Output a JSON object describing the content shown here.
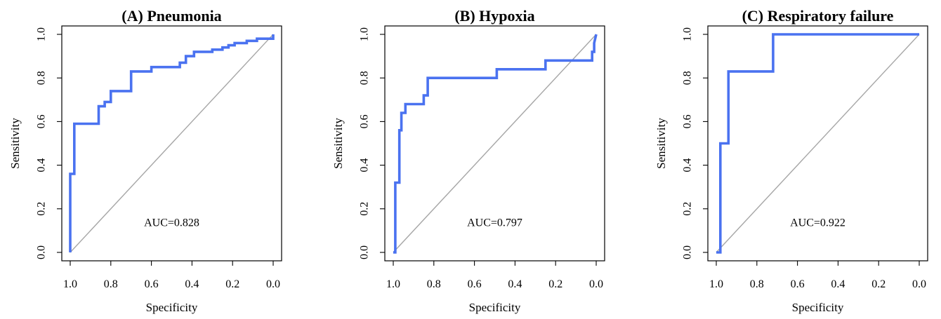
{
  "chart_data": [
    {
      "type": "line",
      "title": "(A) Pneumonia",
      "xlabel": "Specificity",
      "ylabel": "Sensitivity",
      "xlim": [
        1.0,
        0.0
      ],
      "ylim": [
        0.0,
        1.0
      ],
      "x_reversed": true,
      "xticks": [
        "1.0",
        "0.8",
        "0.6",
        "0.4",
        "0.2",
        "0.0"
      ],
      "yticks": [
        "0.0",
        "0.2",
        "0.4",
        "0.6",
        "0.8",
        "1.0"
      ],
      "annotation": "AUC=0.828",
      "diagonal": true,
      "series": [
        {
          "color": "#4a72f0",
          "x": [
            1.0,
            1.0,
            0.98,
            0.98,
            0.86,
            0.86,
            0.83,
            0.83,
            0.8,
            0.8,
            0.7,
            0.7,
            0.6,
            0.6,
            0.46,
            0.46,
            0.43,
            0.43,
            0.39,
            0.39,
            0.3,
            0.3,
            0.25,
            0.25,
            0.22,
            0.22,
            0.19,
            0.19,
            0.13,
            0.13,
            0.08,
            0.08,
            0.0,
            0.0
          ],
          "y": [
            0.0,
            0.36,
            0.36,
            0.59,
            0.59,
            0.67,
            0.67,
            0.69,
            0.69,
            0.74,
            0.74,
            0.83,
            0.83,
            0.85,
            0.85,
            0.87,
            0.87,
            0.9,
            0.9,
            0.92,
            0.92,
            0.93,
            0.93,
            0.94,
            0.94,
            0.95,
            0.95,
            0.96,
            0.96,
            0.97,
            0.97,
            0.98,
            0.98,
            1.0
          ]
        }
      ]
    },
    {
      "type": "line",
      "title": "(B) Hypoxia",
      "xlabel": "Specificity",
      "ylabel": "Sensitivity",
      "xlim": [
        1.0,
        0.0
      ],
      "ylim": [
        0.0,
        1.0
      ],
      "x_reversed": true,
      "xticks": [
        "1.0",
        "0.8",
        "0.6",
        "0.4",
        "0.2",
        "0.0"
      ],
      "yticks": [
        "0.0",
        "0.2",
        "0.4",
        "0.6",
        "0.8",
        "1.0"
      ],
      "annotation": "AUC=0.797",
      "diagonal": true,
      "series": [
        {
          "color": "#4a72f0",
          "x": [
            1.0,
            0.99,
            0.99,
            0.97,
            0.97,
            0.96,
            0.96,
            0.94,
            0.94,
            0.85,
            0.85,
            0.83,
            0.83,
            0.49,
            0.49,
            0.25,
            0.25,
            0.02,
            0.02,
            0.01,
            0.01,
            0.0
          ],
          "y": [
            0.0,
            0.0,
            0.32,
            0.32,
            0.56,
            0.56,
            0.64,
            0.64,
            0.68,
            0.68,
            0.72,
            0.72,
            0.8,
            0.8,
            0.84,
            0.84,
            0.88,
            0.88,
            0.92,
            0.92,
            0.96,
            1.0
          ]
        }
      ]
    },
    {
      "type": "line",
      "title": "(C) Respiratory failure",
      "xlabel": "Specificity",
      "ylabel": "Sensitivity",
      "xlim": [
        1.0,
        0.0
      ],
      "ylim": [
        0.0,
        1.0
      ],
      "x_reversed": true,
      "xticks": [
        "1.0",
        "0.8",
        "0.6",
        "0.4",
        "0.2",
        "0.0"
      ],
      "yticks": [
        "0.0",
        "0.2",
        "0.4",
        "0.6",
        "0.8",
        "1.0"
      ],
      "annotation": "AUC=0.922",
      "diagonal": true,
      "series": [
        {
          "color": "#4a72f0",
          "x": [
            1.0,
            0.98,
            0.98,
            0.95,
            0.95,
            0.94,
            0.94,
            0.72,
            0.72,
            0.0
          ],
          "y": [
            0.0,
            0.0,
            0.5,
            0.5,
            0.5,
            0.5,
            0.83,
            0.83,
            1.0,
            1.0
          ]
        }
      ]
    }
  ]
}
